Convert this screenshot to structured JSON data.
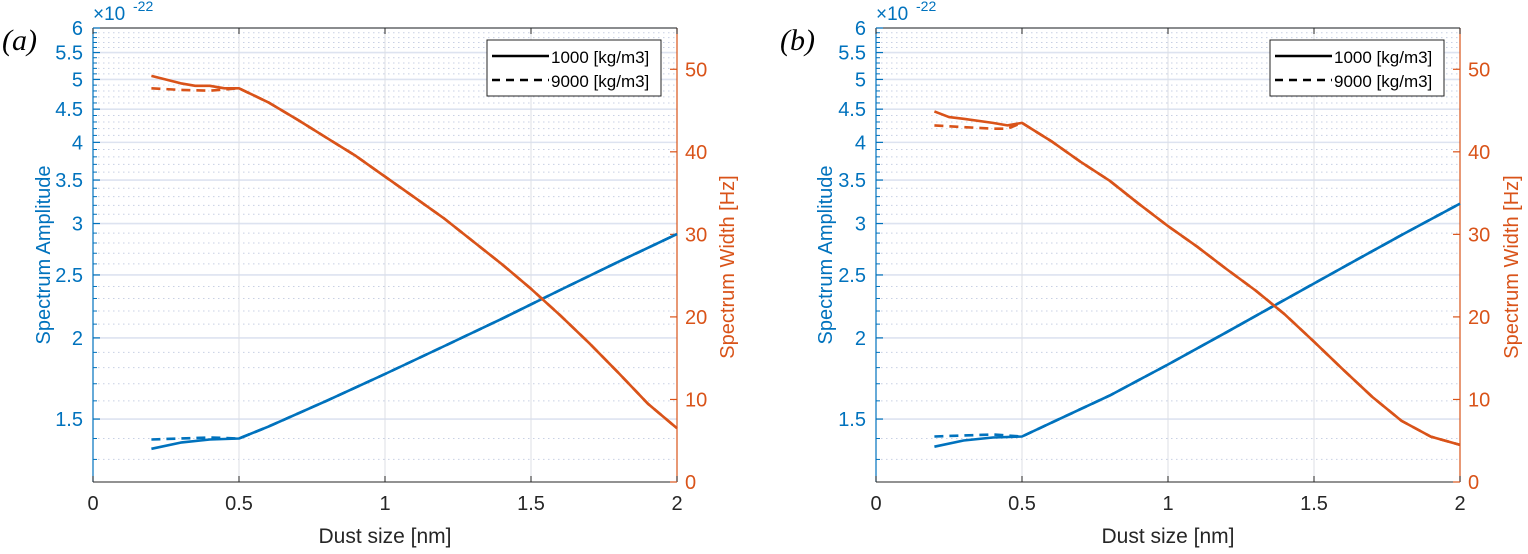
{
  "colors": {
    "left_axis": "#0072BD",
    "right_axis": "#D95319",
    "grid_major": "#dde3f0",
    "grid_minor": "#c8d0e4",
    "text": "#262626"
  },
  "chart_data": [
    {
      "panel_label": "(a)",
      "type": "line",
      "xlabel": "Dust size [nm]",
      "ylabel_left": "Spectrum Amplitude",
      "ylabel_right": "Spectrum Width [Hz]",
      "left_exponent_label": "×10",
      "left_exponent_power": "-22",
      "xlim": [
        0,
        2
      ],
      "ylim_left": [
        1.2,
        6
      ],
      "ylim_right": [
        0,
        55
      ],
      "left_scale": "log",
      "x_ticks": [
        "0",
        "0.5",
        "1",
        "1.5",
        "2"
      ],
      "x_tick_values": [
        0,
        0.5,
        1,
        1.5,
        2
      ],
      "left_ticks": [
        "1.5",
        "2",
        "2.5",
        "3",
        "3.5",
        "4",
        "4.5",
        "5",
        "5.5",
        "6"
      ],
      "left_tick_values": [
        1.5,
        2,
        2.5,
        3,
        3.5,
        4,
        4.5,
        5,
        5.5,
        6
      ],
      "right_ticks": [
        "0",
        "10",
        "20",
        "30",
        "40",
        "50"
      ],
      "right_tick_values": [
        0,
        10,
        20,
        30,
        40,
        50
      ],
      "legend": [
        {
          "label": "1000 [kg/m3]",
          "style": "solid"
        },
        {
          "label": "9000 [kg/m3]",
          "style": "dashed"
        }
      ],
      "legend_position": "top-right",
      "grid": true,
      "series": [
        {
          "name": "Amplitude 1000 [kg/m3]",
          "axis": "left",
          "style": "solid",
          "x": [
            0.2,
            0.3,
            0.4,
            0.5,
            0.6,
            0.8,
            1.0,
            1.2,
            1.4,
            1.6,
            1.8,
            2.0
          ],
          "y": [
            1.35,
            1.38,
            1.395,
            1.4,
            1.46,
            1.6,
            1.76,
            1.94,
            2.14,
            2.37,
            2.62,
            2.89
          ]
        },
        {
          "name": "Amplitude 9000 [kg/m3]",
          "axis": "left",
          "style": "dashed",
          "x": [
            0.2,
            0.3,
            0.4,
            0.5,
            0.6,
            0.8,
            1.0,
            1.2,
            1.4,
            1.6,
            1.8,
            2.0
          ],
          "y": [
            1.395,
            1.4,
            1.405,
            1.4,
            1.46,
            1.6,
            1.76,
            1.94,
            2.14,
            2.37,
            2.62,
            2.89
          ]
        },
        {
          "name": "Width 1000 [kg/m3]",
          "axis": "right",
          "style": "solid",
          "x": [
            0.2,
            0.3,
            0.35,
            0.4,
            0.45,
            0.5,
            0.6,
            0.7,
            0.8,
            0.9,
            1.0,
            1.1,
            1.2,
            1.3,
            1.4,
            1.5,
            1.6,
            1.7,
            1.8,
            1.9,
            2.0
          ],
          "y": [
            49.2,
            48.3,
            48.0,
            48.0,
            47.7,
            47.7,
            46.0,
            43.9,
            41.7,
            39.5,
            37.0,
            34.5,
            32.0,
            29.2,
            26.4,
            23.4,
            20.2,
            16.8,
            13.2,
            9.5,
            6.5
          ]
        },
        {
          "name": "Width 9000 [kg/m3]",
          "axis": "right",
          "style": "dashed",
          "x": [
            0.2,
            0.3,
            0.4,
            0.5,
            0.6,
            0.7,
            0.8,
            0.9,
            1.0,
            1.1,
            1.2,
            1.3,
            1.4,
            1.5,
            1.6,
            1.7,
            1.8,
            1.9,
            2.0
          ],
          "y": [
            47.7,
            47.5,
            47.4,
            47.7,
            46.0,
            43.9,
            41.7,
            39.5,
            37.0,
            34.5,
            32.0,
            29.2,
            26.4,
            23.4,
            20.2,
            16.8,
            13.2,
            9.5,
            6.5
          ]
        }
      ]
    },
    {
      "panel_label": "(b)",
      "type": "line",
      "xlabel": "Dust size [nm]",
      "ylabel_left": "Spectrum Amplitude",
      "ylabel_right": "Spectrum Width [Hz]",
      "left_exponent_label": "×10",
      "left_exponent_power": "-22",
      "xlim": [
        0,
        2
      ],
      "ylim_left": [
        1.2,
        6
      ],
      "ylim_right": [
        0,
        55
      ],
      "left_scale": "log",
      "x_ticks": [
        "0",
        "0.5",
        "1",
        "1.5",
        "2"
      ],
      "x_tick_values": [
        0,
        0.5,
        1,
        1.5,
        2
      ],
      "left_ticks": [
        "1.5",
        "2",
        "2.5",
        "3",
        "3.5",
        "4",
        "4.5",
        "5",
        "5.5",
        "6"
      ],
      "left_tick_values": [
        1.5,
        2,
        2.5,
        3,
        3.5,
        4,
        4.5,
        5,
        5.5,
        6
      ],
      "right_ticks": [
        "0",
        "10",
        "20",
        "30",
        "40",
        "50"
      ],
      "right_tick_values": [
        0,
        10,
        20,
        30,
        40,
        50
      ],
      "legend": [
        {
          "label": "1000 [kg/m3]",
          "style": "solid"
        },
        {
          "label": "9000 [kg/m3]",
          "style": "dashed"
        }
      ],
      "legend_position": "top-right",
      "grid": true,
      "series": [
        {
          "name": "Amplitude 1000 [kg/m3]",
          "axis": "left",
          "style": "solid",
          "x": [
            0.2,
            0.3,
            0.4,
            0.5,
            0.6,
            0.8,
            1.0,
            1.2,
            1.4,
            1.6,
            1.8,
            2.0
          ],
          "y": [
            1.36,
            1.39,
            1.405,
            1.41,
            1.48,
            1.63,
            1.82,
            2.04,
            2.29,
            2.57,
            2.88,
            3.22
          ]
        },
        {
          "name": "Amplitude 9000 [kg/m3]",
          "axis": "left",
          "style": "dashed",
          "x": [
            0.2,
            0.3,
            0.4,
            0.5,
            0.6,
            0.8,
            1.0,
            1.2,
            1.4,
            1.6,
            1.8,
            2.0
          ],
          "y": [
            1.41,
            1.415,
            1.42,
            1.41,
            1.48,
            1.63,
            1.82,
            2.04,
            2.29,
            2.57,
            2.88,
            3.22
          ]
        },
        {
          "name": "Width 1000 [kg/m3]",
          "axis": "right",
          "style": "solid",
          "x": [
            0.2,
            0.25,
            0.3,
            0.4,
            0.45,
            0.5,
            0.6,
            0.7,
            0.8,
            0.9,
            1.0,
            1.1,
            1.2,
            1.3,
            1.4,
            1.5,
            1.6,
            1.7,
            1.8,
            1.9,
            2.0
          ],
          "y": [
            44.9,
            44.2,
            44.0,
            43.5,
            43.2,
            43.5,
            41.3,
            38.8,
            36.5,
            33.7,
            31.0,
            28.5,
            25.8,
            23.2,
            20.3,
            17.0,
            13.6,
            10.3,
            7.4,
            5.5,
            4.5
          ]
        },
        {
          "name": "Width 9000 [kg/m3]",
          "axis": "right",
          "style": "dashed",
          "x": [
            0.2,
            0.3,
            0.4,
            0.45,
            0.5,
            0.6,
            0.7,
            0.8,
            0.9,
            1.0,
            1.1,
            1.2,
            1.3,
            1.4,
            1.5,
            1.6,
            1.7,
            1.8,
            1.9,
            2.0
          ],
          "y": [
            43.2,
            43.0,
            42.8,
            42.8,
            43.5,
            41.3,
            38.8,
            36.5,
            33.7,
            31.0,
            28.5,
            25.8,
            23.2,
            20.3,
            17.0,
            13.6,
            10.3,
            7.4,
            5.5,
            4.5
          ]
        }
      ]
    }
  ]
}
